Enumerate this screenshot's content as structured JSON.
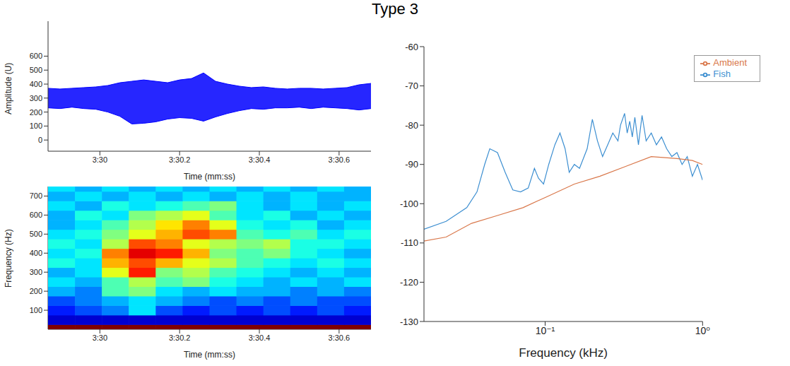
{
  "title": "Type 3",
  "chart_data": [
    {
      "type": "area",
      "x_label": "Time (mm:ss)",
      "y_label": "Amplitude (U)",
      "color": "#0000ff",
      "x": [
        209.87,
        209.9,
        209.93,
        209.96,
        209.99,
        210.02,
        210.05,
        210.08,
        210.11,
        210.14,
        210.17,
        210.2,
        210.23,
        210.26,
        210.29,
        210.32,
        210.35,
        210.38,
        210.41,
        210.44,
        210.47,
        210.5,
        210.53,
        210.56,
        210.59,
        210.62,
        210.65,
        210.68
      ],
      "lower": [
        230,
        225,
        235,
        225,
        220,
        200,
        170,
        115,
        120,
        130,
        150,
        160,
        155,
        135,
        165,
        190,
        210,
        225,
        220,
        230,
        230,
        235,
        225,
        235,
        230,
        225,
        215,
        225
      ],
      "upper": [
        370,
        365,
        370,
        375,
        380,
        390,
        410,
        420,
        430,
        420,
        410,
        430,
        440,
        480,
        420,
        400,
        385,
        375,
        380,
        370,
        365,
        370,
        370,
        365,
        370,
        375,
        395,
        405
      ],
      "xlim": [
        209.87,
        210.68
      ],
      "xticks": [
        {
          "value": 210,
          "label": "3:30"
        },
        {
          "value": 210.2,
          "label": "3:30.2"
        },
        {
          "value": 210.4,
          "label": "3:30.4"
        },
        {
          "value": 210.6,
          "label": "3:30.6"
        }
      ],
      "ylim": [
        -80,
        850
      ],
      "yticks": [
        0,
        100,
        200,
        300,
        400,
        500,
        600
      ]
    },
    {
      "type": "heatmap",
      "x_label": "Time (mm:ss)",
      "y_label": "Frequency (Hz)",
      "x_bins": [
        209.87,
        209.9375,
        210.005,
        210.0725,
        210.14,
        210.2075,
        210.275,
        210.3425,
        210.41,
        210.4775,
        210.545,
        210.6125,
        210.68
      ],
      "y_bins": [
        0,
        25,
        75,
        125,
        175,
        225,
        275,
        325,
        375,
        425,
        475,
        525,
        575,
        625,
        675,
        725,
        750
      ],
      "cells": [
        [
          1,
          1,
          1,
          1,
          1,
          1,
          1,
          1,
          1,
          1,
          1,
          1
        ],
        [
          0.08,
          0.08,
          0.08,
          0.08,
          0.08,
          0.08,
          0.08,
          0.08,
          0.08,
          0.08,
          0.08,
          0.08
        ],
        [
          0.15,
          0.2,
          0.25,
          0.35,
          0.2,
          0.15,
          0.2,
          0.15,
          0.2,
          0.15,
          0.2,
          0.15
        ],
        [
          0.2,
          0.25,
          0.3,
          0.35,
          0.3,
          0.25,
          0.2,
          0.25,
          0.2,
          0.25,
          0.2,
          0.2
        ],
        [
          0.3,
          0.25,
          0.45,
          0.5,
          0.35,
          0.3,
          0.35,
          0.3,
          0.3,
          0.25,
          0.3,
          0.25
        ],
        [
          0.35,
          0.3,
          0.45,
          0.55,
          0.45,
          0.5,
          0.4,
          0.35,
          0.3,
          0.35,
          0.3,
          0.35
        ],
        [
          0.3,
          0.35,
          0.6,
          0.85,
          0.5,
          0.55,
          0.45,
          0.4,
          0.35,
          0.3,
          0.35,
          0.3
        ],
        [
          0.4,
          0.35,
          0.7,
          0.8,
          0.7,
          0.6,
          0.55,
          0.45,
          0.4,
          0.35,
          0.4,
          0.35
        ],
        [
          0.35,
          0.4,
          0.75,
          0.9,
          0.85,
          0.7,
          0.5,
          0.45,
          0.5,
          0.4,
          0.35,
          0.3
        ],
        [
          0.4,
          0.35,
          0.55,
          0.8,
          0.75,
          0.6,
          0.55,
          0.5,
          0.55,
          0.4,
          0.4,
          0.35
        ],
        [
          0.35,
          0.4,
          0.5,
          0.6,
          0.7,
          0.8,
          0.75,
          0.45,
          0.4,
          0.45,
          0.35,
          0.4
        ],
        [
          0.3,
          0.35,
          0.45,
          0.55,
          0.65,
          0.75,
          0.6,
          0.4,
          0.35,
          0.4,
          0.3,
          0.35
        ],
        [
          0.3,
          0.4,
          0.35,
          0.5,
          0.55,
          0.6,
          0.45,
          0.35,
          0.4,
          0.3,
          0.35,
          0.3
        ],
        [
          0.35,
          0.3,
          0.4,
          0.35,
          0.4,
          0.45,
          0.5,
          0.35,
          0.3,
          0.35,
          0.3,
          0.35
        ],
        [
          0.3,
          0.35,
          0.3,
          0.35,
          0.3,
          0.35,
          0.3,
          0.35,
          0.3,
          0.35,
          0.3,
          0.3
        ],
        [
          0.35,
          0.3,
          0.35,
          0.3,
          0.35,
          0.3,
          0.35,
          0.3,
          0.35,
          0.3,
          0.35,
          0.3
        ]
      ],
      "xlim": [
        209.87,
        210.68
      ],
      "xticks": [
        {
          "value": 210,
          "label": "3:30"
        },
        {
          "value": 210.2,
          "label": "3:30.2"
        },
        {
          "value": 210.4,
          "label": "3:30.4"
        },
        {
          "value": 210.6,
          "label": "3:30.6"
        }
      ],
      "ylim": [
        0,
        750
      ],
      "yticks": [
        100,
        200,
        300,
        400,
        500,
        600,
        700
      ]
    },
    {
      "type": "line",
      "x_label": "Frequency (kHz)",
      "log": "x",
      "legend": "top right",
      "xlim": [
        0.017,
        1
      ],
      "xticks": [
        {
          "value": 0.1,
          "label": "10⁻¹"
        },
        {
          "value": 1,
          "label": "10⁰"
        }
      ],
      "ylim": [
        -130,
        -60
      ],
      "yticks": [
        -130,
        -120,
        -110,
        -100,
        -90,
        -80,
        -70,
        -60
      ],
      "series": [
        {
          "name": "Fish",
          "color": "#3d8fd1",
          "x": [
            0.017,
            0.0235,
            0.0318,
            0.0369,
            0.0413,
            0.0445,
            0.0498,
            0.0557,
            0.0623,
            0.0698,
            0.0781,
            0.0855,
            0.0907,
            0.0977,
            0.1054,
            0.1153,
            0.1242,
            0.1339,
            0.1422,
            0.1533,
            0.1653,
            0.1849,
            0.1995,
            0.2149,
            0.2316,
            0.2496,
            0.269,
            0.29,
            0.3011,
            0.3197,
            0.3319,
            0.3446,
            0.3577,
            0.3714,
            0.3914,
            0.4126,
            0.4381,
            0.4721,
            0.509,
            0.5486,
            0.5914,
            0.6376,
            0.6873,
            0.741,
            0.7989,
            0.861,
            0.9279,
            1
          ],
          "values": [
            -106.5,
            -104.5,
            -101,
            -97,
            -90,
            -86,
            -87,
            -92,
            -96.5,
            -97,
            -96,
            -91,
            -93.5,
            -95,
            -90,
            -85,
            -82,
            -86,
            -92,
            -90,
            -91,
            -86,
            -78.5,
            -84,
            -88,
            -85,
            -82,
            -84,
            -80,
            -77,
            -82,
            -79,
            -83,
            -78,
            -85,
            -77.5,
            -84,
            -82,
            -85,
            -83,
            -86,
            -88,
            -87,
            -90,
            -88,
            -93,
            -90,
            -94
          ]
        },
        {
          "name": "Ambient",
          "color": "#d9774a",
          "x": [
            0.017,
            0.0235,
            0.0341,
            0.0498,
            0.0724,
            0.1054,
            0.1533,
            0.2231,
            0.3248,
            0.4721,
            0.6873,
            0.861,
            1
          ],
          "values": [
            -109.5,
            -108.5,
            -105,
            -103,
            -101,
            -98,
            -95,
            -93,
            -90.5,
            -88,
            -88.5,
            -89,
            -90
          ]
        }
      ]
    }
  ]
}
